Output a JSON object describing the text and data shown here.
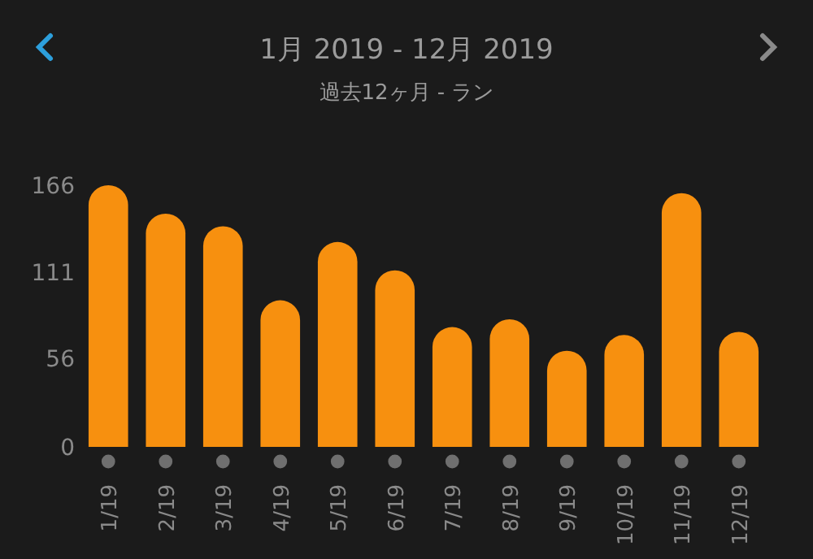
{
  "chart_data": {
    "type": "bar",
    "title": "1月 2019 - 12月 2019",
    "subtitle": "過去12ヶ月 - ラン",
    "categories": [
      "1/19",
      "2/19",
      "3/19",
      "4/19",
      "5/19",
      "6/19",
      "7/19",
      "8/19",
      "9/19",
      "10/19",
      "11/19",
      "12/19"
    ],
    "values": [
      166,
      148,
      140,
      93,
      130,
      112,
      76,
      81,
      61,
      71,
      161,
      73
    ],
    "color": "#f7900f",
    "ylim": [
      0,
      166
    ],
    "yticks": [
      0,
      56,
      111,
      166
    ]
  }
}
